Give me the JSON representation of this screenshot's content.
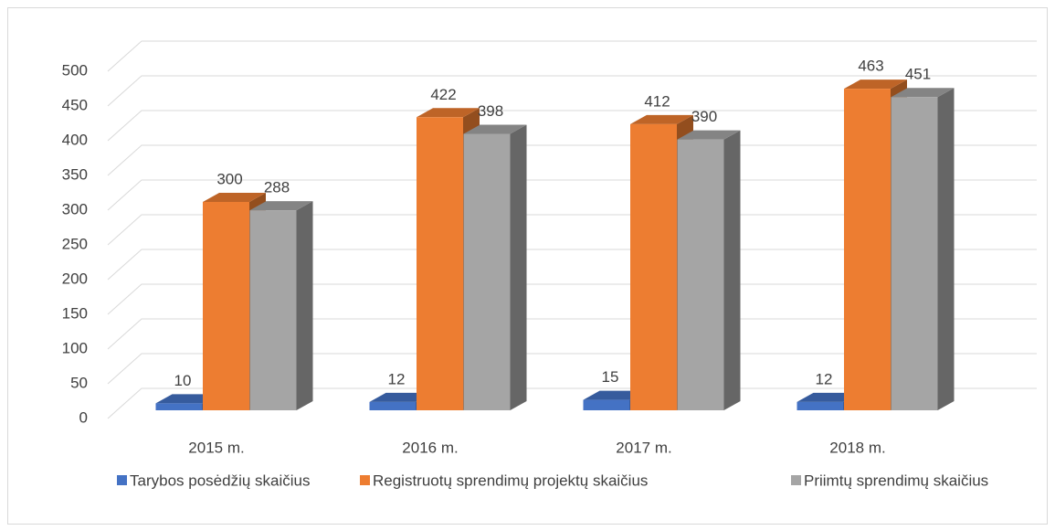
{
  "chart_data": {
    "type": "bar3d",
    "categories": [
      "2015 m.",
      "2016 m.",
      "2017 m.",
      "2018 m."
    ],
    "series": [
      {
        "name": "Tarybos posėdžių skaičius",
        "color": "#4472c4",
        "values": [
          10,
          12,
          15,
          12
        ]
      },
      {
        "name": "Registruotų sprendimų projektų skaičius",
        "color": "#ed7d31",
        "values": [
          300,
          422,
          412,
          463
        ]
      },
      {
        "name": "Priimtų sprendimų skaičius",
        "color": "#a5a5a5",
        "values": [
          288,
          398,
          390,
          451
        ]
      }
    ],
    "ylim": [
      0,
      500
    ],
    "yticks": [
      0,
      50,
      100,
      150,
      200,
      250,
      300,
      350,
      400,
      450,
      500
    ],
    "grid": true,
    "legend": "bottom"
  }
}
